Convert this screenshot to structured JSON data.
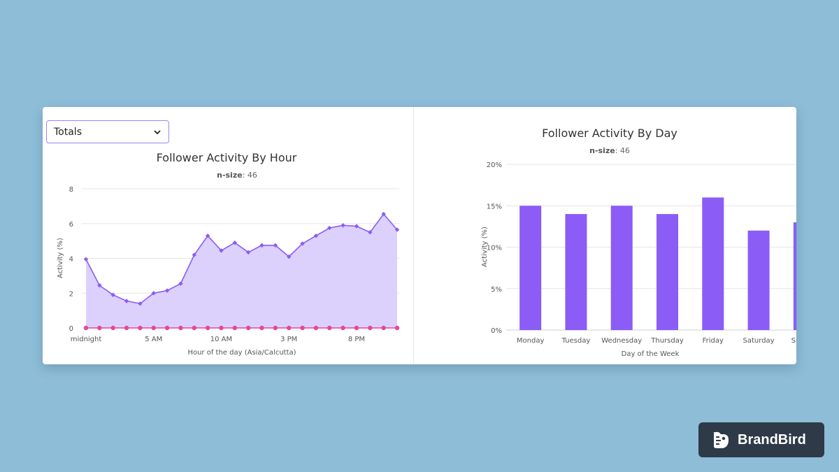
{
  "dropdown": {
    "selected": "Totals"
  },
  "badge": {
    "brand": "BrandBird",
    "icon": "brandbird-logo-icon"
  },
  "colors": {
    "accent": "#8b5cf6",
    "area_fill": "#dcd0fc",
    "baseline_series": "#e0489b",
    "background": "#8ebdd8"
  },
  "hour_chart": {
    "title": "Follower Activity By Hour",
    "nsize_label": "n-size",
    "nsize_value": ": 46",
    "xlabel": "Hour of the day (Asia/Calcutta)",
    "ylabel": "Activity (%)",
    "y_ticks": [
      "0",
      "2",
      "4",
      "6",
      "8"
    ],
    "x_ticks": [
      {
        "hour": 0,
        "label": "midnight"
      },
      {
        "hour": 5,
        "label": "5 AM"
      },
      {
        "hour": 10,
        "label": "10 AM"
      },
      {
        "hour": 15,
        "label": "3 PM"
      },
      {
        "hour": 20,
        "label": "8 PM"
      }
    ]
  },
  "day_chart": {
    "title": "Follower Activity By Day",
    "nsize_label": "n-size",
    "nsize_value": ": 46",
    "xlabel": "Day of the Week",
    "ylabel": "Activity (%)",
    "y_ticks": [
      "0%",
      "5%",
      "10%",
      "15%",
      "20%"
    ]
  },
  "chart_data": [
    {
      "type": "area",
      "title": "Follower Activity By Hour",
      "xlabel": "Hour of the day (Asia/Calcutta)",
      "ylabel": "Activity (%)",
      "ylim": [
        0,
        8
      ],
      "x": [
        0,
        1,
        2,
        3,
        4,
        5,
        6,
        7,
        8,
        9,
        10,
        11,
        12,
        13,
        14,
        15,
        16,
        17,
        18,
        19,
        20,
        21,
        22,
        23
      ],
      "series": [
        {
          "values": [
            3.95,
            2.45,
            1.9,
            1.55,
            1.4,
            2.0,
            2.15,
            2.55,
            4.2,
            5.3,
            4.45,
            4.9,
            4.35,
            4.75,
            4.75,
            4.1,
            4.85,
            5.3,
            5.75,
            5.9,
            5.85,
            5.5,
            6.55,
            5.65
          ]
        },
        {
          "values": [
            0,
            0,
            0,
            0,
            0,
            0,
            0,
            0,
            0,
            0,
            0,
            0,
            0,
            0,
            0,
            0,
            0,
            0,
            0,
            0,
            0,
            0,
            0,
            0
          ]
        }
      ],
      "grid": true
    },
    {
      "type": "bar",
      "title": "Follower Activity By Day",
      "xlabel": "Day of the Week",
      "ylabel": "Activity (%)",
      "categories": [
        "Monday",
        "Tuesday",
        "Wednesday",
        "Thursday",
        "Friday",
        "Saturday",
        "Sunday"
      ],
      "values": [
        15,
        14,
        15,
        14,
        16,
        12,
        13
      ],
      "ylim": [
        0,
        20
      ],
      "grid": true
    }
  ]
}
